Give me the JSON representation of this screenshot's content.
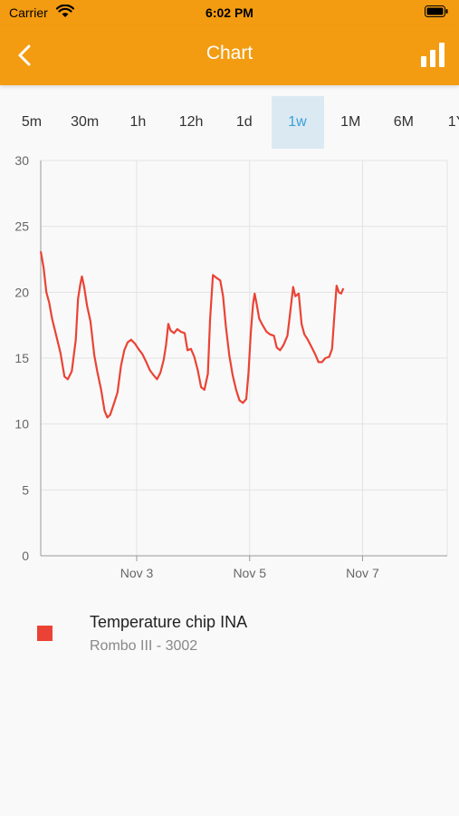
{
  "status_bar": {
    "carrier": "Carrier",
    "time": "6:02 PM"
  },
  "nav": {
    "title": "Chart"
  },
  "range_tabs": [
    {
      "label": "5m",
      "active": false
    },
    {
      "label": "30m",
      "active": false
    },
    {
      "label": "1h",
      "active": false
    },
    {
      "label": "12h",
      "active": false
    },
    {
      "label": "1d",
      "active": false
    },
    {
      "label": "1w",
      "active": true
    },
    {
      "label": "1M",
      "active": false
    },
    {
      "label": "6M",
      "active": false
    },
    {
      "label": "1Y",
      "active": false
    }
  ],
  "colors": {
    "accent": "#f39c12",
    "series": "#ea4335",
    "active_tab_bg": "#dbe9f3",
    "active_tab_text": "#3aa0d8"
  },
  "chart_data": {
    "type": "line",
    "ylim": [
      0,
      30
    ],
    "yticks": [
      "0",
      "5",
      "10",
      "15",
      "20",
      "25",
      "30"
    ],
    "xlim": [
      1.3,
      8.5
    ],
    "xticks": [
      {
        "label": "Nov 3",
        "value": 3
      },
      {
        "label": "Nov 5",
        "value": 5
      },
      {
        "label": "Nov 7",
        "value": 7
      }
    ],
    "grid": true,
    "series": [
      {
        "name": "Temperature chip INA",
        "values": [
          [
            1.3,
            23.1
          ],
          [
            1.35,
            21.9
          ],
          [
            1.4,
            20.0
          ],
          [
            1.45,
            19.2
          ],
          [
            1.5,
            18.0
          ],
          [
            1.58,
            16.6
          ],
          [
            1.65,
            15.4
          ],
          [
            1.72,
            13.6
          ],
          [
            1.78,
            13.4
          ],
          [
            1.85,
            14.0
          ],
          [
            1.92,
            16.4
          ],
          [
            1.96,
            19.5
          ],
          [
            2.0,
            20.6
          ],
          [
            2.03,
            21.2
          ],
          [
            2.07,
            20.4
          ],
          [
            2.12,
            19.0
          ],
          [
            2.18,
            17.8
          ],
          [
            2.25,
            15.2
          ],
          [
            2.3,
            14.0
          ],
          [
            2.37,
            12.6
          ],
          [
            2.43,
            11.0
          ],
          [
            2.48,
            10.5
          ],
          [
            2.53,
            10.7
          ],
          [
            2.6,
            11.6
          ],
          [
            2.66,
            12.4
          ],
          [
            2.72,
            14.4
          ],
          [
            2.78,
            15.6
          ],
          [
            2.84,
            16.2
          ],
          [
            2.9,
            16.4
          ],
          [
            2.97,
            16.1
          ],
          [
            3.03,
            15.7
          ],
          [
            3.1,
            15.3
          ],
          [
            3.17,
            14.7
          ],
          [
            3.23,
            14.1
          ],
          [
            3.3,
            13.7
          ],
          [
            3.36,
            13.4
          ],
          [
            3.42,
            13.9
          ],
          [
            3.48,
            14.9
          ],
          [
            3.52,
            16.0
          ],
          [
            3.56,
            17.6
          ],
          [
            3.6,
            17.1
          ],
          [
            3.66,
            16.9
          ],
          [
            3.72,
            17.2
          ],
          [
            3.78,
            17.0
          ],
          [
            3.85,
            16.9
          ],
          [
            3.9,
            15.6
          ],
          [
            3.96,
            15.7
          ],
          [
            4.02,
            15.1
          ],
          [
            4.08,
            14.1
          ],
          [
            4.14,
            12.8
          ],
          [
            4.2,
            12.6
          ],
          [
            4.26,
            13.8
          ],
          [
            4.3,
            18.0
          ],
          [
            4.35,
            21.3
          ],
          [
            4.41,
            21.1
          ],
          [
            4.48,
            20.9
          ],
          [
            4.53,
            19.7
          ],
          [
            4.58,
            17.4
          ],
          [
            4.64,
            15.2
          ],
          [
            4.7,
            13.7
          ],
          [
            4.76,
            12.6
          ],
          [
            4.82,
            11.8
          ],
          [
            4.88,
            11.6
          ],
          [
            4.94,
            11.9
          ],
          [
            4.98,
            13.9
          ],
          [
            5.02,
            16.9
          ],
          [
            5.06,
            19.1
          ],
          [
            5.09,
            19.9
          ],
          [
            5.13,
            19.0
          ],
          [
            5.17,
            18.0
          ],
          [
            5.23,
            17.5
          ],
          [
            5.3,
            17.0
          ],
          [
            5.36,
            16.8
          ],
          [
            5.43,
            16.7
          ],
          [
            5.48,
            15.8
          ],
          [
            5.54,
            15.6
          ],
          [
            5.6,
            16.0
          ],
          [
            5.67,
            16.7
          ],
          [
            5.72,
            18.5
          ],
          [
            5.77,
            20.4
          ],
          [
            5.81,
            19.7
          ],
          [
            5.87,
            19.9
          ],
          [
            5.92,
            17.6
          ],
          [
            5.97,
            16.8
          ],
          [
            6.03,
            16.4
          ],
          [
            6.09,
            15.9
          ],
          [
            6.16,
            15.3
          ],
          [
            6.22,
            14.7
          ],
          [
            6.28,
            14.7
          ],
          [
            6.34,
            15.0
          ],
          [
            6.41,
            15.1
          ],
          [
            6.46,
            15.7
          ],
          [
            6.5,
            18.2
          ],
          [
            6.54,
            20.5
          ],
          [
            6.58,
            20.0
          ],
          [
            6.62,
            19.9
          ],
          [
            6.66,
            20.3
          ]
        ]
      }
    ]
  },
  "legend": {
    "title": "Temperature chip INA",
    "subtitle": "Rombo III - 3002"
  }
}
